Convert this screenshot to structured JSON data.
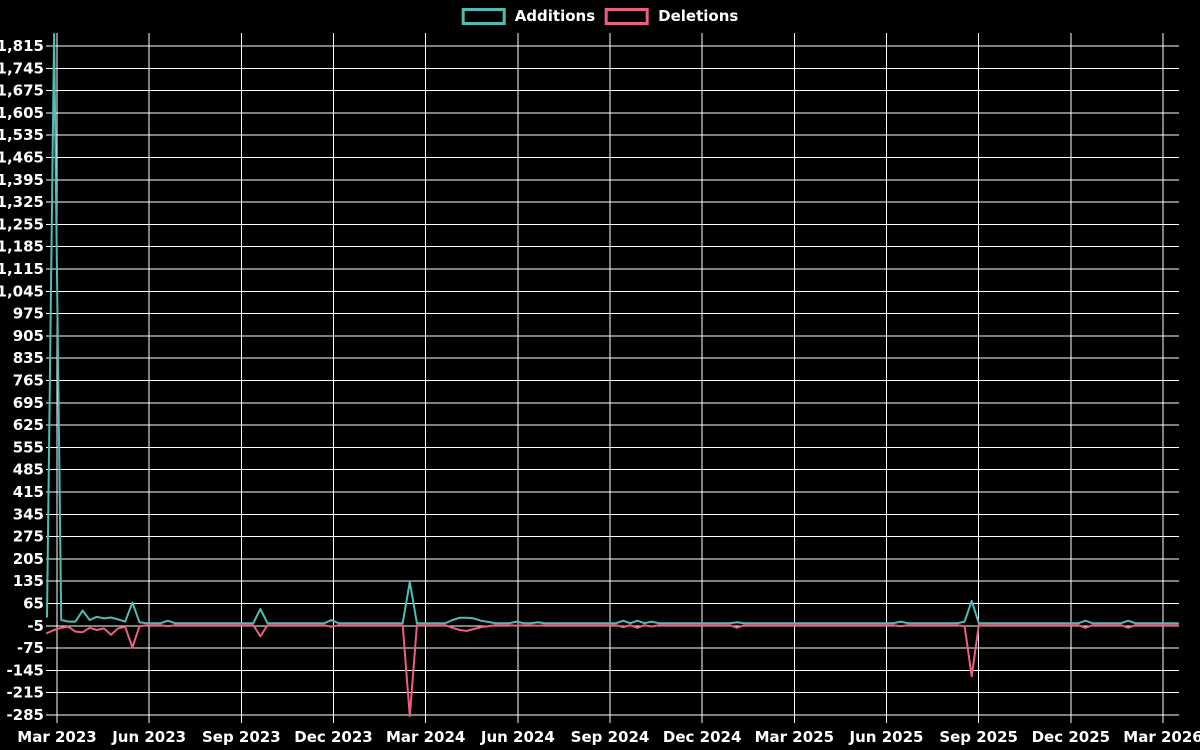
{
  "page": {
    "background": "#000000"
  },
  "legend": {
    "items": [
      {
        "label": "Additions",
        "color": "#4fbdb2"
      },
      {
        "label": "Deletions",
        "color": "#ed5f7f"
      }
    ]
  },
  "chart_data": {
    "type": "line",
    "title": "",
    "grid": true,
    "legend_position": "top-center",
    "colors": {
      "background": "#000000",
      "grid": "#ffffff",
      "text": "#ffffff",
      "additions": "#4fbdb2",
      "deletions": "#ed5f7f"
    },
    "x_axis": {
      "unit": "week",
      "tick_labels": [
        "Mar 2023",
        "Jun 2023",
        "Sep 2023",
        "Dec 2023",
        "Mar 2024",
        "Jun 2024",
        "Sep 2024",
        "Dec 2024",
        "Mar 2025",
        "Jun 2025",
        "Sep 2025",
        "Dec 2025",
        "Mar 2026"
      ]
    },
    "y_axis": {
      "ticks": [
        1815,
        1745,
        1675,
        1605,
        1535,
        1465,
        1395,
        1325,
        1255,
        1185,
        1115,
        1045,
        975,
        905,
        835,
        765,
        695,
        625,
        555,
        485,
        415,
        345,
        275,
        205,
        135,
        65,
        -5,
        -75,
        -145,
        -215,
        -285
      ],
      "range": [
        -285,
        1815
      ]
    },
    "series": [
      {
        "name": "Additions",
        "color": "#4fbdb2",
        "values": [
          20,
          1850,
          10,
          5,
          5,
          40,
          10,
          20,
          15,
          18,
          12,
          5,
          65,
          3,
          0,
          0,
          0,
          8,
          0,
          0,
          0,
          0,
          0,
          0,
          0,
          0,
          0,
          0,
          0,
          0,
          45,
          0,
          0,
          0,
          0,
          0,
          0,
          0,
          0,
          0,
          10,
          0,
          0,
          0,
          0,
          0,
          0,
          0,
          0,
          0,
          0,
          130,
          0,
          0,
          0,
          0,
          0,
          10,
          17,
          17,
          15,
          8,
          4,
          0,
          0,
          0,
          5,
          0,
          0,
          3,
          0,
          0,
          0,
          0,
          0,
          0,
          0,
          0,
          0,
          0,
          0,
          8,
          0,
          8,
          0,
          5,
          0,
          0,
          0,
          0,
          0,
          0,
          0,
          0,
          0,
          0,
          0,
          3,
          0,
          0,
          0,
          0,
          0,
          0,
          0,
          0,
          0,
          0,
          0,
          0,
          0,
          0,
          0,
          0,
          0,
          0,
          0,
          0,
          0,
          0,
          5,
          0,
          0,
          0,
          0,
          0,
          0,
          0,
          0,
          5,
          70,
          0,
          0,
          0,
          0,
          0,
          0,
          0,
          0,
          0,
          0,
          0,
          0,
          0,
          0,
          0,
          8,
          0,
          0,
          0,
          0,
          0,
          8,
          0,
          0,
          0,
          0,
          0,
          0,
          0
        ]
      },
      {
        "name": "Deletions",
        "color": "#ed5f7f",
        "values": [
          -25,
          -15,
          -8,
          -5,
          -20,
          -22,
          -8,
          -15,
          -10,
          -30,
          -10,
          -5,
          -70,
          -3,
          0,
          0,
          0,
          -3,
          0,
          0,
          0,
          0,
          0,
          0,
          0,
          0,
          0,
          0,
          0,
          0,
          -35,
          0,
          0,
          0,
          0,
          0,
          0,
          0,
          0,
          0,
          -5,
          0,
          0,
          0,
          0,
          0,
          0,
          0,
          0,
          0,
          0,
          -285,
          0,
          0,
          0,
          0,
          0,
          -8,
          -15,
          -18,
          -12,
          -6,
          -3,
          0,
          0,
          0,
          -2,
          0,
          0,
          -2,
          0,
          0,
          0,
          0,
          0,
          0,
          0,
          0,
          0,
          0,
          0,
          -6,
          0,
          -8,
          0,
          -4,
          0,
          0,
          0,
          0,
          0,
          0,
          0,
          0,
          0,
          0,
          0,
          -8,
          0,
          0,
          0,
          0,
          0,
          0,
          0,
          0,
          0,
          0,
          0,
          0,
          0,
          0,
          0,
          0,
          0,
          0,
          0,
          0,
          0,
          0,
          -3,
          0,
          0,
          0,
          0,
          0,
          0,
          0,
          0,
          -3,
          -160,
          0,
          0,
          0,
          0,
          0,
          0,
          0,
          0,
          0,
          0,
          0,
          0,
          0,
          0,
          0,
          -8,
          0,
          0,
          0,
          0,
          0,
          -8,
          0,
          0,
          0,
          0,
          0,
          0,
          0
        ]
      }
    ]
  }
}
